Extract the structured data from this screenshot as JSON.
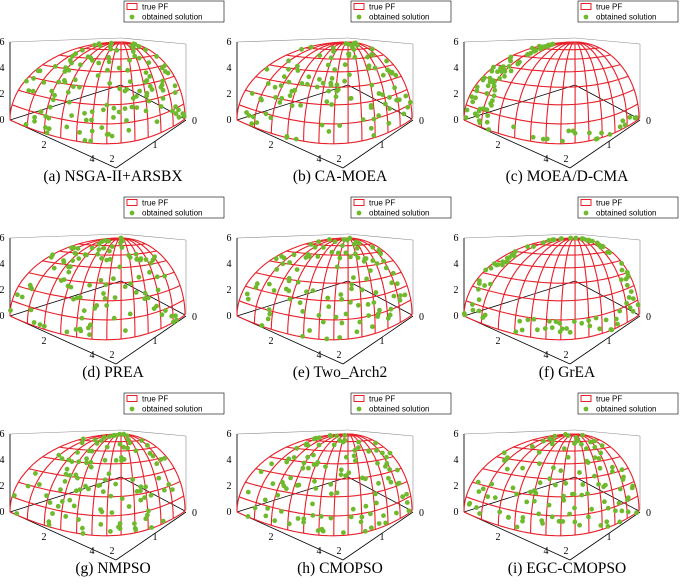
{
  "colors": {
    "front": "#e8202a",
    "solution": "#6fba2c",
    "axis": "#000000",
    "background": "#ffffff"
  },
  "legend": {
    "true_pf": "true PF",
    "obtained": "obtained solution"
  },
  "chart_data": [
    {
      "type": "scatter",
      "panel": "NSGA-II+ARSBX",
      "caption": "(a) NSGA-II+ARSBX",
      "z_ticks": [
        "0",
        "2",
        "4",
        "6"
      ],
      "x_ticks": [
        "2",
        "4"
      ],
      "y_ticks": [
        "2",
        "1"
      ],
      "xlim": [
        0,
        4
      ],
      "ylim": [
        0,
        2
      ],
      "zlim": [
        0,
        6
      ],
      "legend": [
        "true PF",
        "obtained solution"
      ],
      "legend_placement": "top-right",
      "series": [
        {
          "name": "true PF",
          "shape": "ellipsoid octant",
          "x_semi_axis": 4,
          "y_semi_axis": 2,
          "z_semi_axis": 6
        },
        {
          "name": "obtained solution",
          "distribution": "scattered, uneven",
          "count": 130
        }
      ]
    },
    {
      "type": "scatter",
      "panel": "CA-MOEA",
      "caption": "(b) CA-MOEA",
      "z_ticks": [
        "0",
        "2",
        "4",
        "6"
      ],
      "x_ticks": [
        "2",
        "4"
      ],
      "y_ticks": [
        "2",
        "1"
      ],
      "xlim": [
        0,
        4
      ],
      "ylim": [
        0,
        2
      ],
      "zlim": [
        0,
        6
      ],
      "legend": [
        "true PF",
        "obtained solution"
      ],
      "legend_placement": "top-right",
      "series": [
        {
          "name": "true PF",
          "shape": "ellipsoid octant",
          "x_semi_axis": 4,
          "y_semi_axis": 2,
          "z_semi_axis": 6
        },
        {
          "name": "obtained solution",
          "distribution": "scattered, fairly uniform",
          "count": 110
        }
      ]
    },
    {
      "type": "scatter",
      "panel": "MOEA/D-CMA",
      "caption": "(c) MOEA/D-CMA",
      "z_ticks": [
        "0",
        "2",
        "4",
        "6"
      ],
      "x_ticks": [
        "2",
        "4"
      ],
      "y_ticks": [
        "2",
        "1"
      ],
      "xlim": [
        0,
        4
      ],
      "ylim": [
        0,
        2
      ],
      "zlim": [
        0,
        6
      ],
      "legend": [
        "true PF",
        "obtained solution"
      ],
      "legend_placement": "top-right",
      "series": [
        {
          "name": "true PF",
          "shape": "ellipsoid octant",
          "x_semi_axis": 4,
          "y_semi_axis": 2,
          "z_semi_axis": 6
        },
        {
          "name": "obtained solution",
          "distribution": "clustered on left boundary",
          "count": 90
        }
      ]
    },
    {
      "type": "scatter",
      "panel": "PREA",
      "caption": "(d) PREA",
      "z_ticks": [
        "0",
        "2",
        "4",
        "6"
      ],
      "x_ticks": [
        "2",
        "4"
      ],
      "y_ticks": [
        "2",
        "1"
      ],
      "xlim": [
        0,
        4
      ],
      "ylim": [
        0,
        2
      ],
      "zlim": [
        0,
        6
      ],
      "legend": [
        "true PF",
        "obtained solution"
      ],
      "legend_placement": "top-right",
      "series": [
        {
          "name": "true PF",
          "shape": "ellipsoid octant",
          "x_semi_axis": 4,
          "y_semi_axis": 2,
          "z_semi_axis": 6
        },
        {
          "name": "obtained solution",
          "distribution": "uniform",
          "count": 105
        }
      ]
    },
    {
      "type": "scatter",
      "panel": "Two_Arch2",
      "caption": "(e) Two_Arch2",
      "z_ticks": [
        "0",
        "2",
        "4",
        "6"
      ],
      "x_ticks": [
        "2",
        "4"
      ],
      "y_ticks": [
        "2",
        "1"
      ],
      "xlim": [
        0,
        4
      ],
      "ylim": [
        0,
        2
      ],
      "zlim": [
        0,
        6
      ],
      "legend": [
        "true PF",
        "obtained solution"
      ],
      "legend_placement": "top-right",
      "series": [
        {
          "name": "true PF",
          "shape": "ellipsoid octant",
          "x_semi_axis": 4,
          "y_semi_axis": 2,
          "z_semi_axis": 6
        },
        {
          "name": "obtained solution",
          "distribution": "scattered",
          "count": 105
        }
      ]
    },
    {
      "type": "scatter",
      "panel": "GrEA",
      "caption": "(f) GrEA",
      "z_ticks": [
        "0",
        "2",
        "4",
        "6"
      ],
      "x_ticks": [
        "2",
        "4"
      ],
      "y_ticks": [
        "2",
        "1"
      ],
      "xlim": [
        0,
        4
      ],
      "ylim": [
        0,
        2
      ],
      "zlim": [
        0,
        6
      ],
      "legend": [
        "true PF",
        "obtained solution"
      ],
      "legend_placement": "top-right",
      "series": [
        {
          "name": "true PF",
          "shape": "ellipsoid octant",
          "x_semi_axis": 4,
          "y_semi_axis": 2,
          "z_semi_axis": 6
        },
        {
          "name": "obtained solution",
          "distribution": "mostly on boundaries",
          "count": 100
        }
      ]
    },
    {
      "type": "scatter",
      "panel": "NMPSO",
      "caption": "(g) NMPSO",
      "z_ticks": [
        "0",
        "2",
        "4",
        "6"
      ],
      "x_ticks": [
        "2",
        "4"
      ],
      "y_ticks": [
        "2",
        "1"
      ],
      "xlim": [
        0,
        4
      ],
      "ylim": [
        0,
        2
      ],
      "zlim": [
        0,
        6
      ],
      "legend": [
        "true PF",
        "obtained solution"
      ],
      "legend_placement": "top-right",
      "series": [
        {
          "name": "true PF",
          "shape": "ellipsoid octant",
          "x_semi_axis": 4,
          "y_semi_axis": 2,
          "z_semi_axis": 6
        },
        {
          "name": "obtained solution",
          "distribution": "fairly uniform",
          "count": 110
        }
      ]
    },
    {
      "type": "scatter",
      "panel": "CMOPSO",
      "caption": "(h) CMOPSO",
      "z_ticks": [
        "0",
        "2",
        "4",
        "6"
      ],
      "x_ticks": [
        "2",
        "4"
      ],
      "y_ticks": [
        "2",
        "1"
      ],
      "xlim": [
        0,
        4
      ],
      "ylim": [
        0,
        2
      ],
      "zlim": [
        0,
        6
      ],
      "legend": [
        "true PF",
        "obtained solution"
      ],
      "legend_placement": "top-right",
      "series": [
        {
          "name": "true PF",
          "shape": "ellipsoid octant",
          "x_semi_axis": 4,
          "y_semi_axis": 2,
          "z_semi_axis": 6
        },
        {
          "name": "obtained solution",
          "distribution": "fairly uniform",
          "count": 110
        }
      ]
    },
    {
      "type": "scatter",
      "panel": "EGC-CMOPSO",
      "caption": "(i) EGC-CMOPSO",
      "z_ticks": [
        "0",
        "2",
        "4",
        "6"
      ],
      "x_ticks": [
        "2",
        "4"
      ],
      "y_ticks": [
        "2",
        "1"
      ],
      "xlim": [
        0,
        4
      ],
      "ylim": [
        0,
        2
      ],
      "zlim": [
        0,
        6
      ],
      "legend": [
        "true PF",
        "obtained solution"
      ],
      "legend_placement": "top-right",
      "series": [
        {
          "name": "true PF",
          "shape": "ellipsoid octant",
          "x_semi_axis": 4,
          "y_semi_axis": 2,
          "z_semi_axis": 6
        },
        {
          "name": "obtained solution",
          "distribution": "uniform",
          "count": 110
        }
      ]
    }
  ]
}
